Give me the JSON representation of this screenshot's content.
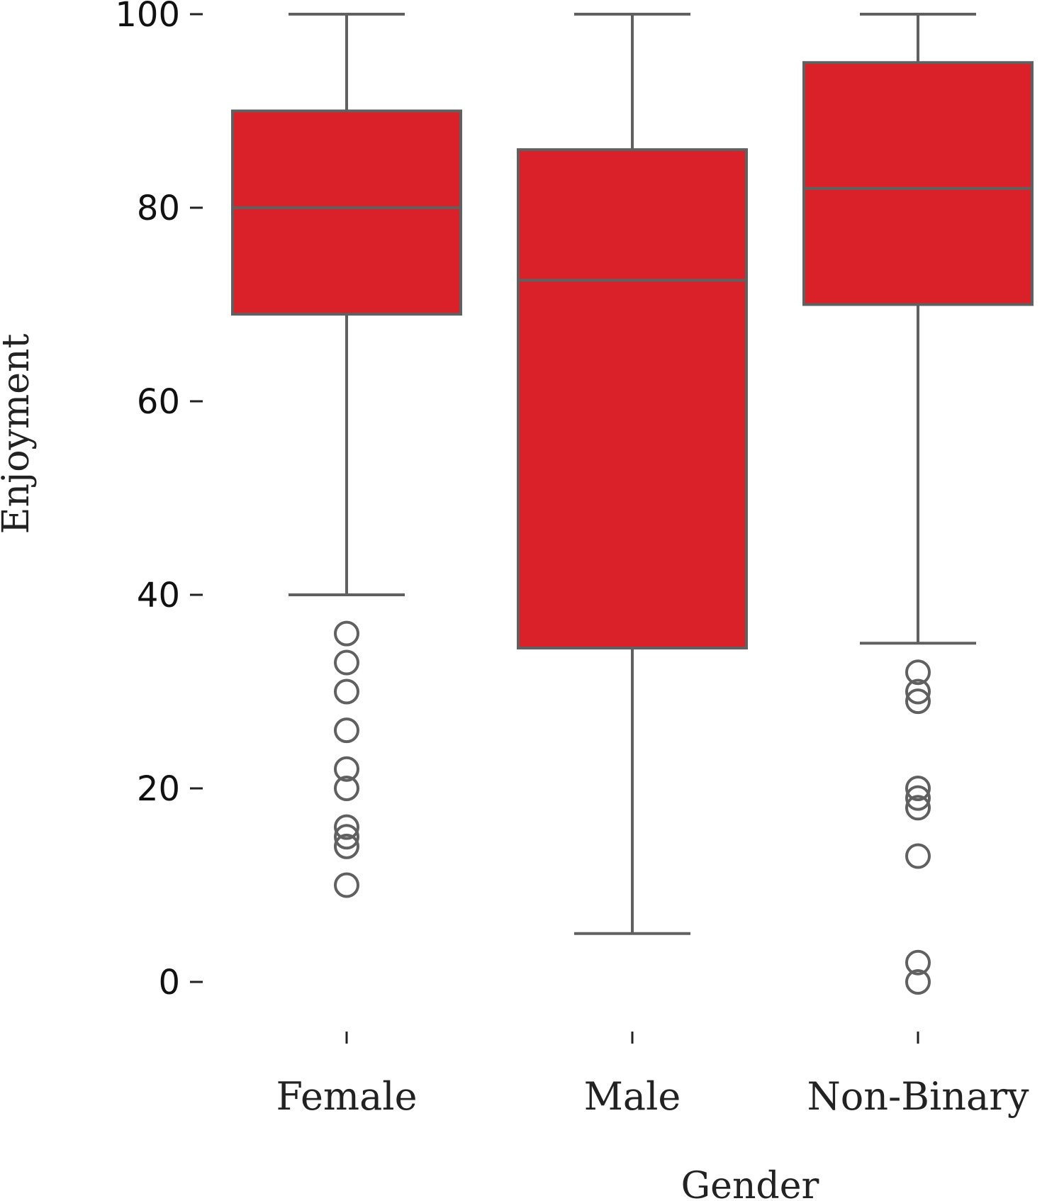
{
  "chart_data": {
    "type": "box",
    "title": "",
    "xlabel": "Gender",
    "ylabel": "Enjoyment",
    "ylim": [
      -5,
      100
    ],
    "yticks": [
      0,
      20,
      40,
      60,
      80,
      100
    ],
    "ytick_labels": [
      "0",
      "20",
      "40",
      "60",
      "80",
      "100"
    ],
    "grid": false,
    "colors": {
      "box_fill": "#da2028",
      "line": "#606060",
      "text": "#222222"
    },
    "categories": [
      "Female",
      "Male",
      "Non-Binary"
    ],
    "boxes": [
      {
        "category": "Female",
        "whisker_low": 40,
        "q1": 69,
        "median": 80,
        "q3": 90,
        "whisker_high": 100,
        "outliers": [
          36,
          33,
          30,
          26,
          22,
          20,
          16,
          15,
          14,
          10
        ]
      },
      {
        "category": "Male",
        "whisker_low": 5,
        "q1": 34.5,
        "median": 72.5,
        "q3": 86,
        "whisker_high": 100,
        "outliers": []
      },
      {
        "category": "Non-Binary",
        "whisker_low": 35,
        "q1": 70,
        "median": 82,
        "q3": 95,
        "whisker_high": 100,
        "outliers": [
          32,
          30,
          29,
          20,
          19,
          18,
          13,
          2,
          0
        ]
      }
    ]
  }
}
